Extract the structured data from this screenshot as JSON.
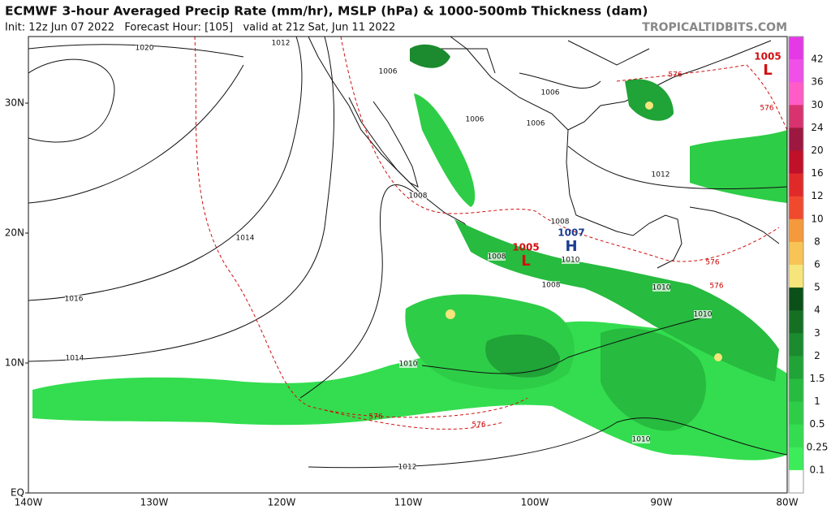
{
  "header": {
    "title": "ECMWF 3-hour Averaged Precip Rate (mm/hr), MSLP (hPa) & 1000-500mb Thickness (dam)",
    "subtitle": "Init: 12z Jun 07 2022   Forecast Hour: [105]   valid at 21z Sat, Jun 11 2022",
    "watermark": "TROPICALTIDBITS.COM"
  },
  "map": {
    "latitude_labels": [
      "30N",
      "20N",
      "10N",
      "EQ"
    ],
    "longitude_labels": [
      "140W",
      "130W",
      "120W",
      "110W",
      "100W",
      "90W",
      "80W"
    ],
    "isobar_labels": [
      "1020",
      "1012",
      "1006",
      "1006",
      "1006",
      "1006",
      "1008",
      "1014",
      "1016",
      "1014",
      "1010",
      "1012",
      "1012",
      "1008",
      "1008",
      "1010",
      "1008",
      "1010",
      "1010",
      "1010"
    ],
    "thickness_labels": [
      "576",
      "576",
      "576",
      "576",
      "576",
      "576"
    ],
    "pressure_centers": [
      {
        "letter": "L",
        "value": "1005",
        "color": "#d01010"
      },
      {
        "letter": "L",
        "value": "1005",
        "color": "#d01010"
      },
      {
        "letter": "H",
        "value": "1007",
        "color": "#1a3d8f"
      }
    ]
  },
  "colorbar": {
    "labels": [
      "42",
      "36",
      "30",
      "24",
      "20",
      "16",
      "12",
      "10",
      "8",
      "6",
      "5",
      "4",
      "3",
      "2",
      "1.5",
      "1",
      "0.5",
      "0.25",
      "0.1"
    ],
    "colors": [
      "#e639e6",
      "#f050e8",
      "#ff5cc8",
      "#d8336e",
      "#9c1840",
      "#c0102a",
      "#e02a2a",
      "#f04a2e",
      "#f49a3c",
      "#f7c455",
      "#f6e57a",
      "#0b4f19",
      "#157024",
      "#1c8a2e",
      "#20a337",
      "#27bb3f",
      "#2ecd47",
      "#33dd4f",
      "#3ced59",
      "#ffffff"
    ]
  }
}
